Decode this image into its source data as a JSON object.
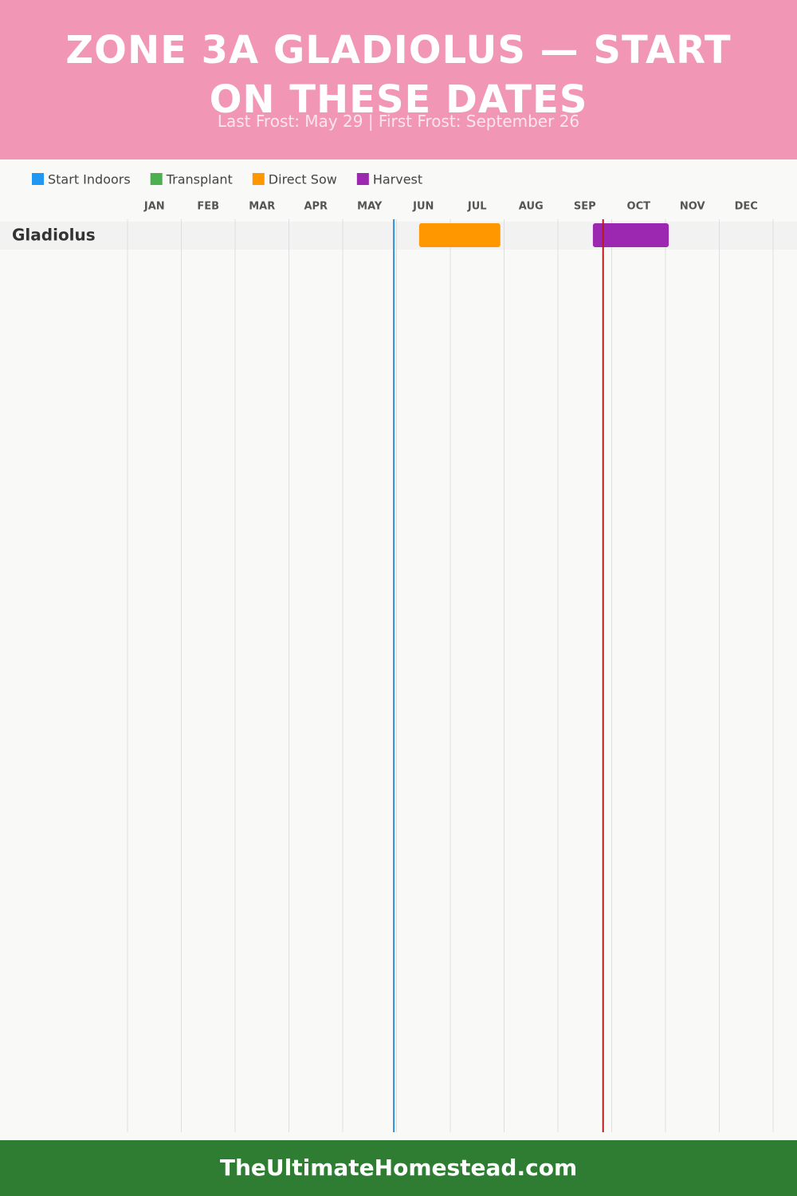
{
  "chart_data": {
    "type": "gantt",
    "title": "ZONE 3A GLADIOLUS — START ON THESE DATES",
    "subtitle": "Last Frost: May 29 | First Frost: September 26",
    "months": [
      "JAN",
      "FEB",
      "MAR",
      "APR",
      "MAY",
      "JUN",
      "JUL",
      "AUG",
      "SEP",
      "OCT",
      "NOV",
      "DEC"
    ],
    "xlim": [
      0,
      12
    ],
    "rows": [
      "Gladiolus"
    ],
    "series": [
      {
        "name": "Start Indoors",
        "color": "#2196f3",
        "start": [
          null
        ],
        "end": [
          null
        ]
      },
      {
        "name": "Transplant",
        "color": "#4caf50",
        "start": [
          null
        ],
        "end": [
          null
        ]
      },
      {
        "name": "Direct Sow",
        "color": "#ff9800",
        "start": [
          5.42
        ],
        "end": [
          6.93
        ]
      },
      {
        "name": "Harvest",
        "color": "#9c27b0",
        "start": [
          8.65
        ],
        "end": [
          10.06
        ]
      }
    ],
    "markers": [
      {
        "value": 4.95,
        "color": "#2e8fd6"
      },
      {
        "value": 8.84,
        "color": "#b71c1c"
      }
    ],
    "footer": "TheUltimateHomestead.com"
  }
}
